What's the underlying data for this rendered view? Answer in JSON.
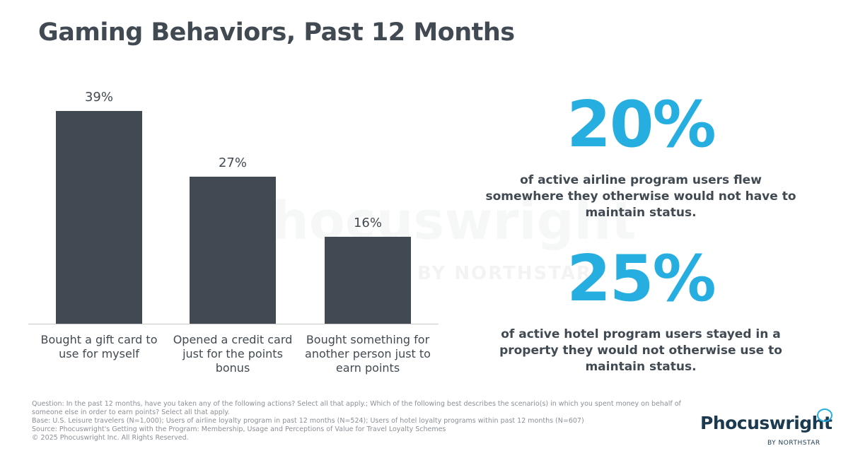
{
  "title": "Gaming Behaviors, Past 12 Months",
  "watermark": {
    "name": "Phocuswright",
    "sub": "BY NORTHSTAR"
  },
  "chart_data": {
    "type": "bar",
    "categories": [
      "Bought a gift card to use for myself",
      "Opened a credit card just for the points bonus",
      "Bought something for another person just to earn points"
    ],
    "values": [
      39,
      27,
      16
    ],
    "value_labels": [
      "39%",
      "27%",
      "16%"
    ],
    "unit": "%",
    "ylim": [
      0,
      45
    ],
    "grid": false,
    "color": "#414a52"
  },
  "stats": [
    {
      "value": "20%",
      "text": "of active airline program users flew somewhere they otherwise would not have to maintain status."
    },
    {
      "value": "25%",
      "text": "of active hotel program users stayed in a property they would not otherwise use to maintain status."
    }
  ],
  "accent_color": "#27aee0",
  "footnotes": [
    "Question: In the past 12 months, have you taken any of the following actions? Select all that apply.; Which of the following best describes the scenario(s) in which you spent money on behalf of someone else in order to earn points? Select all that apply.",
    "Base: U.S. Leisure travelers (N=1,000); Users of airline loyalty program in past 12 months (N=524); Users of hotel loyalty programs within past 12 months (N=607)",
    "Source: Phocuswright's Getting with the Program: Membership, Usage and Perceptions of Value for Travel Loyalty Schemes",
    "© 2025 Phocuswright Inc. All Rights Reserved."
  ],
  "logo": {
    "name": "Phocuswright",
    "sub": "BY NORTHSTAR"
  }
}
